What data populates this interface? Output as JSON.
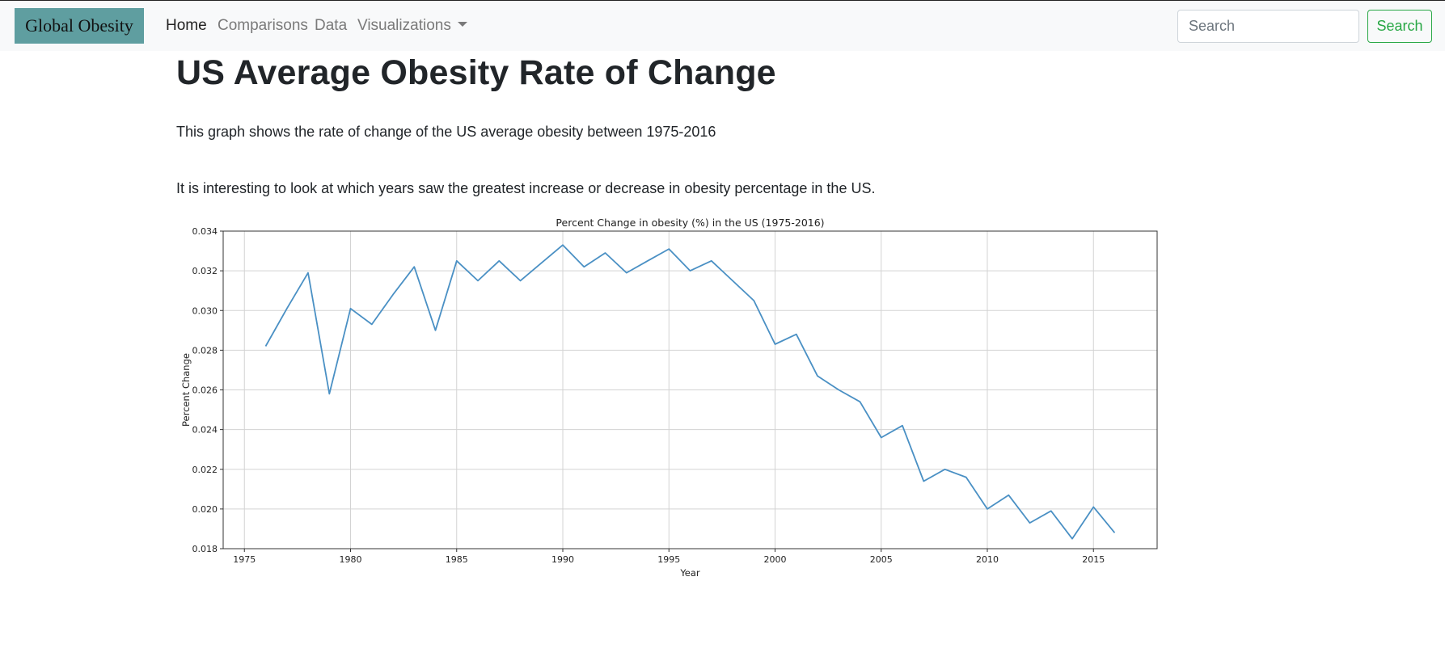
{
  "navbar": {
    "brand": "Global Obesity",
    "links": [
      {
        "label": "Home",
        "active": true
      },
      {
        "label": "Comparisons",
        "active": false
      },
      {
        "label": "Data",
        "active": false
      },
      {
        "label": "Visualizations",
        "active": false
      }
    ],
    "search_placeholder": "Search",
    "search_button": "Search"
  },
  "main": {
    "title": "US Average Obesity Rate of Change",
    "paragraph1": "This graph shows the rate of change of the US average obesity between 1975-2016",
    "paragraph2": "It is interesting to look at which years saw the greatest increase or decrease in obesity percentage in the US."
  },
  "colors": {
    "brand_bg": "#5f9ea0",
    "line": "#4a90c4",
    "search_button": "#28a745"
  },
  "chart_data": {
    "type": "line",
    "title": "Percent Change in obesity (%) in the US (1975-2016)",
    "xlabel": "Year",
    "ylabel": "Percent Change",
    "xlim": [
      1974,
      2018
    ],
    "ylim": [
      0.018,
      0.034
    ],
    "grid": true,
    "xticks": [
      1975,
      1980,
      1985,
      1990,
      1995,
      2000,
      2005,
      2010,
      2015
    ],
    "yticks": [
      0.018,
      0.02,
      0.022,
      0.024,
      0.026,
      0.028,
      0.03,
      0.032,
      0.034
    ],
    "ytick_labels": [
      "0.018",
      "0.020",
      "0.022",
      "0.024",
      "0.026",
      "0.028",
      "0.030",
      "0.032",
      "0.034"
    ],
    "x": [
      1976,
      1977,
      1978,
      1979,
      1980,
      1981,
      1982,
      1983,
      1984,
      1985,
      1986,
      1987,
      1988,
      1989,
      1990,
      1991,
      1992,
      1993,
      1994,
      1995,
      1996,
      1997,
      1998,
      1999,
      2000,
      2001,
      2002,
      2003,
      2004,
      2005,
      2006,
      2007,
      2008,
      2009,
      2010,
      2011,
      2012,
      2013,
      2014,
      2015,
      2016
    ],
    "series": [
      {
        "values": [
          0.0282,
          0.0301,
          0.0319,
          0.0258,
          0.0301,
          0.0293,
          0.0308,
          0.0322,
          0.029,
          0.0325,
          0.0315,
          0.0325,
          0.0315,
          0.0324,
          0.0333,
          0.0322,
          0.0329,
          0.0319,
          0.0325,
          0.0331,
          0.032,
          0.0325,
          0.0315,
          0.0305,
          0.0283,
          0.0288,
          0.0267,
          0.026,
          0.0254,
          0.0236,
          0.0242,
          0.0214,
          0.022,
          0.0216,
          0.02,
          0.0207,
          0.0193,
          0.0199,
          0.0185,
          0.0201,
          0.0188
        ],
        "color": "#4a90c4"
      }
    ]
  }
}
